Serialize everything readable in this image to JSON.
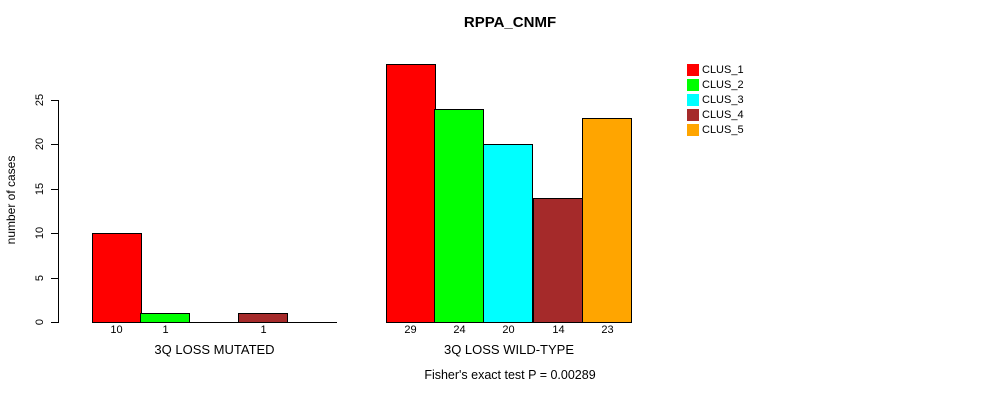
{
  "chart_data": {
    "type": "bar",
    "title": "RPPA_CNMF",
    "ylabel": "number of cases",
    "ylim": [
      0,
      29
    ],
    "yticks": [
      0,
      5,
      10,
      15,
      20,
      25
    ],
    "grid": false,
    "legend_position": "right",
    "categories": [
      "CLUS_1",
      "CLUS_2",
      "CLUS_3",
      "CLUS_4",
      "CLUS_5"
    ],
    "legend": [
      {
        "label": "CLUS_1",
        "color": "#FF0000"
      },
      {
        "label": "CLUS_2",
        "color": "#00FF00"
      },
      {
        "label": "CLUS_3",
        "color": "#00FFFF"
      },
      {
        "label": "CLUS_4",
        "color": "#A52A2A"
      },
      {
        "label": "CLUS_5",
        "color": "#FFA500"
      }
    ],
    "groups": [
      {
        "label": "3Q LOSS MUTATED",
        "values": [
          10,
          1,
          0,
          1,
          0
        ],
        "bar_labels": [
          "10",
          "1",
          "",
          "1",
          ""
        ]
      },
      {
        "label": "3Q LOSS WILD-TYPE",
        "values": [
          29,
          24,
          20,
          14,
          23
        ],
        "bar_labels": [
          "29",
          "24",
          "20",
          "14",
          "23"
        ]
      }
    ],
    "annotation": "Fisher's exact test P = 0.00289"
  }
}
